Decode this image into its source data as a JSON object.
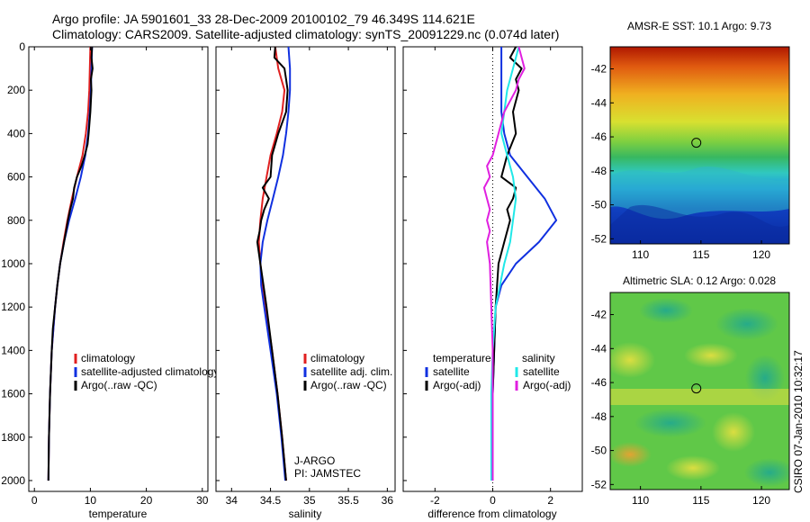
{
  "header": {
    "line1": "Argo profile: JA 5901601_33 28-Dec-2009 20100102_79 46.349S 114.621E",
    "line2": "Climatology: CARS2009. Satellite-adjusted climatology: synTS_20091229.nc (0.074d later)"
  },
  "credit": "CSIRO 07-Jan-2010 10:32:17",
  "colors": {
    "climatology": "#e02020",
    "satellite": "#1030e0",
    "argo": "#000000",
    "sal_satellite": "#20e8e8",
    "sal_argo": "#e020e0",
    "marker": "#000000"
  },
  "chart_data": [
    {
      "type": "line",
      "id": "temperature-panel",
      "xlabel": "temperature",
      "ylabel": "",
      "xlim": [
        -1,
        31
      ],
      "ylim": [
        2050,
        0
      ],
      "y_inverted": true,
      "xticks": [
        "0",
        "10",
        "20",
        "30"
      ],
      "yticks": [
        "0",
        "200",
        "400",
        "600",
        "800",
        "1000",
        "1200",
        "1400",
        "1600",
        "1800",
        "2000"
      ],
      "legend": {
        "placement": "lower-left",
        "entries": [
          "climatology",
          "satellite-adjusted climatology",
          "Argo(..raw -QC)"
        ]
      },
      "series": [
        {
          "name": "climatology",
          "color_key": "climatology",
          "y": [
            0,
            100,
            200,
            300,
            400,
            500,
            600,
            700,
            800,
            900,
            1000,
            1100,
            1200,
            1400,
            1600,
            1800,
            2000
          ],
          "x": [
            10.0,
            9.9,
            9.8,
            9.6,
            9.2,
            8.6,
            7.6,
            6.7,
            5.9,
            5.2,
            4.6,
            4.1,
            3.7,
            3.1,
            2.8,
            2.6,
            2.5
          ]
        },
        {
          "name": "satellite-adjusted climatology",
          "color_key": "satellite",
          "y": [
            0,
            100,
            200,
            300,
            400,
            500,
            600,
            700,
            800,
            900,
            1000,
            1100,
            1200,
            1400,
            1600,
            1800,
            2000
          ],
          "x": [
            10.3,
            10.2,
            10.1,
            9.9,
            9.6,
            9.1,
            8.3,
            7.3,
            6.2,
            5.3,
            4.6,
            4.1,
            3.7,
            3.1,
            2.8,
            2.6,
            2.5
          ]
        },
        {
          "name": "Argo(..raw -QC)",
          "color_key": "argo",
          "y": [
            0,
            50,
            100,
            150,
            200,
            300,
            400,
            450,
            500,
            550,
            600,
            650,
            700,
            750,
            800,
            900,
            1000,
            1100,
            1200,
            1300,
            1400,
            1600,
            1800,
            2000
          ],
          "x": [
            10.3,
            10.2,
            10.4,
            10.1,
            10.2,
            10.0,
            9.7,
            9.5,
            9.0,
            8.4,
            7.6,
            7.1,
            6.9,
            6.4,
            6.0,
            5.3,
            4.6,
            4.1,
            3.7,
            3.3,
            3.1,
            2.8,
            2.6,
            2.5
          ]
        }
      ]
    },
    {
      "type": "line",
      "id": "salinity-panel",
      "xlabel": "salinity",
      "ylabel": "",
      "xlim": [
        33.8,
        36.1
      ],
      "ylim": [
        2050,
        0
      ],
      "y_inverted": true,
      "xticks": [
        "34",
        "34.5",
        "35",
        "35.5",
        "36"
      ],
      "annotation": [
        "J-ARGO",
        "PI: JAMSTEC"
      ],
      "legend": {
        "placement": "lower-right",
        "entries": [
          "climatology",
          "satellite adj. clim.",
          "Argo(..raw -QC)"
        ]
      },
      "series": [
        {
          "name": "climatology",
          "color_key": "climatology",
          "y": [
            0,
            100,
            200,
            300,
            400,
            500,
            600,
            700,
            800,
            900,
            1000,
            1100,
            1200,
            1400,
            1600,
            1800,
            2000
          ],
          "x": [
            34.56,
            34.6,
            34.68,
            34.65,
            34.58,
            34.5,
            34.45,
            34.4,
            34.37,
            34.35,
            34.37,
            34.4,
            34.44,
            34.52,
            34.59,
            34.65,
            34.7
          ]
        },
        {
          "name": "satellite adj. clim.",
          "color_key": "satellite",
          "y": [
            0,
            100,
            200,
            300,
            400,
            500,
            600,
            700,
            800,
            900,
            1000,
            1100,
            1200,
            1400,
            1600,
            1800,
            2000
          ],
          "x": [
            34.73,
            34.75,
            34.75,
            34.73,
            34.7,
            34.66,
            34.6,
            34.53,
            34.46,
            34.4,
            34.37,
            34.38,
            34.42,
            34.5,
            34.58,
            34.64,
            34.69
          ]
        },
        {
          "name": "Argo(..raw -QC)",
          "color_key": "argo",
          "y": [
            0,
            50,
            100,
            150,
            200,
            300,
            400,
            500,
            600,
            650,
            700,
            750,
            800,
            850,
            900,
            950,
            1000,
            1100,
            1200,
            1400,
            1600,
            1800,
            2000
          ],
          "x": [
            34.56,
            34.55,
            34.68,
            34.7,
            34.72,
            34.7,
            34.6,
            34.52,
            34.5,
            34.4,
            34.48,
            34.42,
            34.38,
            34.36,
            34.33,
            34.35,
            34.37,
            34.41,
            34.45,
            34.52,
            34.59,
            34.65,
            34.7
          ]
        }
      ]
    },
    {
      "type": "line",
      "id": "difference-panel",
      "xlabel": "difference from climatology",
      "ylabel": "",
      "xlim": [
        -3.1,
        3.1
      ],
      "ylim": [
        2050,
        0
      ],
      "y_inverted": true,
      "xticks": [
        "-2",
        "0",
        "2"
      ],
      "zero_line": "dotted",
      "legend": {
        "placement": "lower",
        "columns": [
          {
            "header": "temperature",
            "entries": [
              "satellite",
              "Argo(-adj)"
            ]
          },
          {
            "header": "salinity",
            "entries": [
              "satellite",
              "Argo(-adj)"
            ]
          }
        ]
      },
      "series": [
        {
          "name": "temperature satellite",
          "color_key": "satellite",
          "y": [
            0,
            100,
            200,
            300,
            400,
            500,
            600,
            700,
            800,
            900,
            1000,
            1100,
            1200,
            1400,
            1600,
            1800,
            2000
          ],
          "x": [
            0.3,
            0.3,
            0.3,
            0.3,
            0.4,
            0.6,
            1.2,
            1.8,
            2.2,
            1.6,
            0.8,
            0.3,
            0.1,
            0.05,
            0.0,
            0.0,
            0.0
          ]
        },
        {
          "name": "temperature Argo(-adj)",
          "color_key": "argo",
          "y": [
            0,
            50,
            100,
            150,
            200,
            300,
            400,
            500,
            600,
            650,
            700,
            750,
            800,
            900,
            1000,
            1200,
            1400,
            1600,
            1800,
            2000
          ],
          "x": [
            0.8,
            0.6,
            1.0,
            0.8,
            0.9,
            0.7,
            0.8,
            0.5,
            0.3,
            0.8,
            0.7,
            0.5,
            0.6,
            0.4,
            0.2,
            0.1,
            0.05,
            0.0,
            0.0,
            0.0
          ]
        },
        {
          "name": "salinity satellite",
          "color_key": "sal_satellite",
          "y": [
            0,
            100,
            200,
            300,
            400,
            500,
            600,
            700,
            800,
            900,
            1000,
            1200,
            1400,
            1600,
            1800,
            2000
          ],
          "x": [
            0.9,
            0.7,
            0.5,
            0.4,
            0.3,
            0.5,
            0.7,
            0.8,
            0.7,
            0.6,
            0.4,
            0.1,
            0.0,
            -0.05,
            -0.05,
            -0.05
          ]
        },
        {
          "name": "salinity Argo(-adj)",
          "color_key": "sal_argo",
          "y": [
            0,
            50,
            100,
            150,
            200,
            300,
            400,
            500,
            550,
            600,
            650,
            700,
            750,
            800,
            850,
            900,
            1000,
            1200,
            1400,
            1600,
            1800,
            2000
          ],
          "x": [
            0.9,
            1.0,
            1.1,
            0.9,
            0.8,
            0.4,
            0.2,
            0.0,
            -0.2,
            -0.1,
            -0.3,
            -0.2,
            -0.1,
            -0.2,
            -0.1,
            -0.2,
            -0.1,
            -0.05,
            0.0,
            0.0,
            0.0,
            0.0
          ]
        }
      ]
    },
    {
      "type": "heatmap",
      "id": "sst-map",
      "title_label": "AMSR-E SST:",
      "title_value": "10.1",
      "argo_label": "Argo:",
      "argo_value": "9.73",
      "xlim": [
        107.5,
        122.3
      ],
      "ylim": [
        -52.3,
        -40.7
      ],
      "xticks": [
        "110",
        "115",
        "120"
      ],
      "yticks": [
        "-42",
        "-44",
        "-46",
        "-48",
        "-50",
        "-52"
      ],
      "marker": {
        "lon": 114.621,
        "lat": -46.349
      }
    },
    {
      "type": "heatmap",
      "id": "sla-map",
      "title_label": "Altimetric SLA:",
      "title_value": "0.12",
      "argo_label": "Argo:",
      "argo_value": "0.028",
      "xlim": [
        107.5,
        122.3
      ],
      "ylim": [
        -52.3,
        -40.7
      ],
      "xticks": [
        "110",
        "115",
        "120"
      ],
      "yticks": [
        "-42",
        "-44",
        "-46",
        "-48",
        "-50",
        "-52"
      ],
      "marker": {
        "lon": 114.621,
        "lat": -46.349
      }
    }
  ]
}
